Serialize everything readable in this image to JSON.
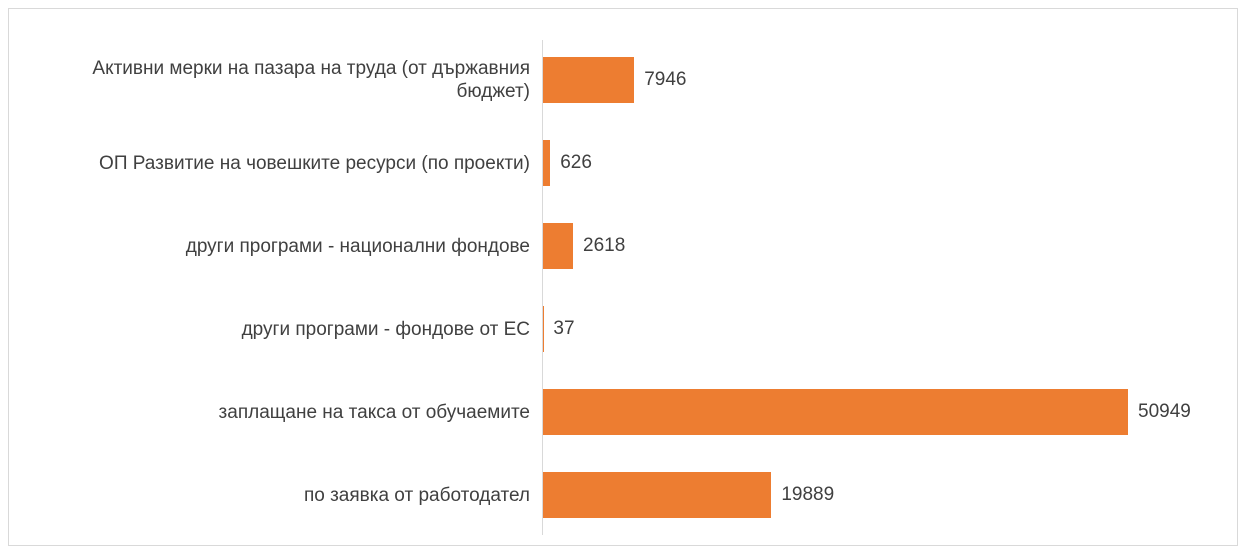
{
  "chart_data": {
    "type": "barh",
    "categories": [
      "Активни мерки на пазара на труда (от държавния бюджет)",
      "ОП Развитие на човешките ресурси (по проекти)",
      "други програми - национални фондове",
      "други програми - фондове от ЕС",
      "заплащане на такса от обучаемите",
      "по заявка от работодател"
    ],
    "values": [
      7946,
      626,
      2618,
      37,
      50949,
      19889
    ],
    "color": "#ed7d31"
  }
}
